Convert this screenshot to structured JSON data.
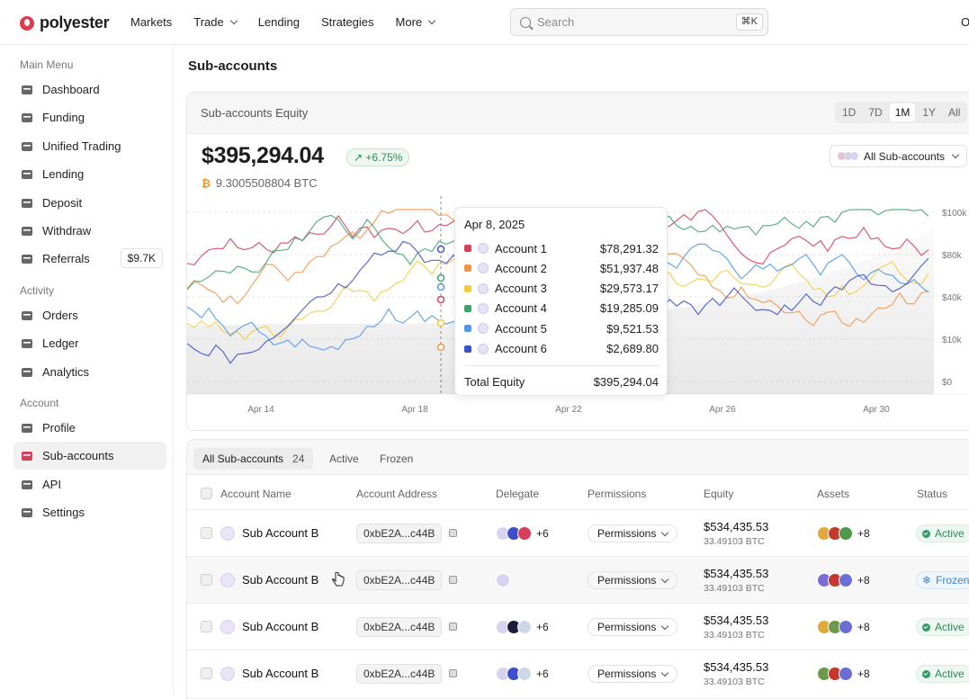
{
  "brand": "polyester",
  "nav": {
    "markets": "Markets",
    "trade": "Trade",
    "lending": "Lending",
    "strategies": "Strategies",
    "more": "More"
  },
  "search": {
    "placeholder": "Search",
    "shortcut": "⌘K"
  },
  "top_right": "O",
  "sidebar": {
    "main_menu_title": "Main Menu",
    "activity_title": "Activity",
    "account_title": "Account",
    "items": [
      {
        "label": "Dashboard",
        "icon": "dashboard-icon"
      },
      {
        "label": "Funding",
        "icon": "wallet-icon"
      },
      {
        "label": "Unified Trading",
        "icon": "candles-icon"
      },
      {
        "label": "Lending",
        "icon": "hand-coin-icon"
      },
      {
        "label": "Deposit",
        "icon": "deposit-icon"
      },
      {
        "label": "Withdraw",
        "icon": "withdraw-icon"
      },
      {
        "label": "Referrals",
        "icon": "referrals-icon",
        "badge": "$9.7K"
      },
      {
        "label": "Orders",
        "icon": "orders-icon"
      },
      {
        "label": "Ledger",
        "icon": "ledger-icon"
      },
      {
        "label": "Analytics",
        "icon": "analytics-icon"
      },
      {
        "label": "Profile",
        "icon": "profile-icon"
      },
      {
        "label": "Sub-accounts",
        "icon": "users-icon",
        "active": true
      },
      {
        "label": "API",
        "icon": "api-icon"
      },
      {
        "label": "Settings",
        "icon": "gear-icon"
      }
    ]
  },
  "page_title": "Sub-accounts",
  "equity_card": {
    "title": "Sub-accounts Equity",
    "ranges": [
      "1D",
      "7D",
      "1M",
      "1Y",
      "All"
    ],
    "selected_range": "1M",
    "total": "$395,294.04",
    "change": "+6.75%",
    "btc": "9.3005508804 BTC",
    "filter": "All Sub-accounts"
  },
  "tooltip": {
    "date": "Apr 8, 2025",
    "rows": [
      {
        "name": "Account 1",
        "value": "$78,291.32",
        "color": "#d6405a"
      },
      {
        "name": "Account 2",
        "value": "$51,937.48",
        "color": "#f0954a"
      },
      {
        "name": "Account 3",
        "value": "$29,573.17",
        "color": "#f2cc3e"
      },
      {
        "name": "Account 4",
        "value": "$19,285.09",
        "color": "#3fa36d"
      },
      {
        "name": "Account 5",
        "value": "$9,521.53",
        "color": "#4f98e6"
      },
      {
        "name": "Account 6",
        "value": "$2,689.80",
        "color": "#3d4fc9"
      }
    ],
    "total_label": "Total Equity",
    "total_value": "$395,294.04"
  },
  "chart_data": {
    "type": "line",
    "x_ticks": [
      "Apr 14",
      "Apr 18",
      "Apr 22",
      "Apr 26",
      "Apr 30"
    ],
    "y_ticks": [
      "$100k",
      "$80k",
      "$40k",
      "$10k",
      "$0"
    ],
    "series_colors": [
      "#d6405a",
      "#f0954a",
      "#f2cc3e",
      "#3fa36d",
      "#4f98e6",
      "#3d4fc9"
    ]
  },
  "table": {
    "tabs": [
      {
        "label": "All Sub-accounts",
        "count": "24"
      },
      {
        "label": "Active"
      },
      {
        "label": "Frozen"
      }
    ],
    "headers": [
      "Account Name",
      "Account Address",
      "Delegate",
      "Permissions",
      "Equity",
      "Assets",
      "Status"
    ],
    "rows": [
      {
        "name": "Sub Account B",
        "address": "0xbE2A...c44B",
        "delegate_more": "+6",
        "permissions": "Permissions",
        "equity": "$534,435.53",
        "equity_btc": "33.49103 BTC",
        "assets_more": "+8",
        "status": "Active"
      },
      {
        "name": "Sub Account B",
        "address": "0xbE2A...c44B",
        "delegate_more": "",
        "permissions": "Permissions",
        "equity": "$534,435.53",
        "equity_btc": "33.49103 BTC",
        "assets_more": "+8",
        "status": "Frozen"
      },
      {
        "name": "Sub Account B",
        "address": "0xbE2A...c44B",
        "delegate_more": "+6",
        "permissions": "Permissions",
        "equity": "$534,435.53",
        "equity_btc": "33.49103 BTC",
        "assets_more": "+8",
        "status": "Active"
      },
      {
        "name": "Sub Account B",
        "address": "0xbE2A...c44B",
        "delegate_more": "+6",
        "permissions": "Permissions",
        "equity": "$534,435.53",
        "equity_btc": "33.49103 BTC",
        "assets_more": "+8",
        "status": "Active"
      }
    ]
  }
}
